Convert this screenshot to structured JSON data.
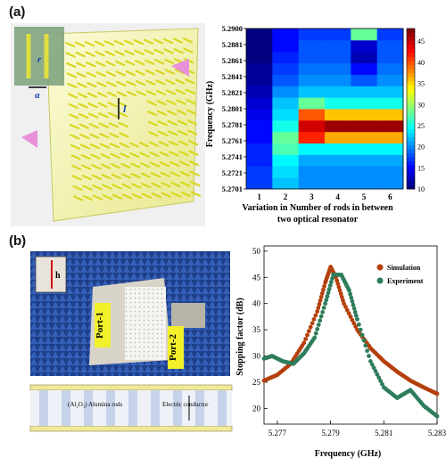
{
  "panel_a": {
    "label": "(a)",
    "schematic": {
      "symbols": [
        "r",
        "a",
        "l"
      ]
    },
    "heatmap": {
      "ylabel": "Frequency (GHz)",
      "xlabel_line1": "Variation in Number of rods in between",
      "xlabel_line2": "two optical resonator",
      "colorbar_ticks": [
        10,
        15,
        20,
        25,
        30,
        35,
        40,
        45
      ]
    }
  },
  "panel_b": {
    "label": "(b)",
    "photo": {
      "port1": "Port-1",
      "port2": "Port-2",
      "inset": "h"
    },
    "cross_section": {
      "rods_label": "(Al₂O₃) Alumina rods",
      "conductor_label": "Electric conductor"
    },
    "line_chart": {
      "xlabel": "Frequency (GHz)",
      "ylabel": "Stopping factor (dB)",
      "legend": [
        "Simulation",
        "Experiment"
      ]
    }
  },
  "chart_data": [
    {
      "type": "heatmap",
      "xlabel": "Variation in Number of rods in between two optical resonator",
      "ylabel": "Frequency (GHz)",
      "x": [
        1,
        2,
        3,
        4,
        5,
        6
      ],
      "y_tick_labels": [
        "5.2701",
        "5.2721",
        "5.2741",
        "5.2761",
        "5.2781",
        "5.2801",
        "5.2821",
        "5.2841",
        "5.2861",
        "5.2881",
        "5.2900"
      ],
      "ylim": [
        5.2701,
        5.29
      ],
      "colorbar": {
        "min": 10,
        "max": 48,
        "ticks": [
          10,
          15,
          20,
          25,
          30,
          35,
          40,
          45
        ]
      },
      "rows_bottom_to_top": [
        [
          17,
          22,
          20,
          20,
          20,
          20
        ],
        [
          17,
          23,
          20,
          20,
          20,
          20
        ],
        [
          16,
          24,
          21,
          21,
          21,
          21
        ],
        [
          16,
          27,
          24,
          24,
          24,
          24
        ],
        [
          15,
          28,
          42,
          37,
          37,
          37
        ],
        [
          15,
          25,
          45,
          47,
          47,
          47
        ],
        [
          14,
          23,
          40,
          36,
          36,
          36
        ],
        [
          13,
          22,
          28,
          25,
          25,
          25
        ],
        [
          12,
          20,
          22,
          22,
          22,
          22
        ],
        [
          11,
          18,
          20,
          20,
          18,
          20
        ],
        [
          11,
          17,
          19,
          19,
          15,
          19
        ],
        [
          10,
          16,
          18,
          18,
          12,
          18
        ],
        [
          10,
          15,
          18,
          18,
          13,
          18
        ],
        [
          10,
          15,
          17,
          17,
          28,
          17
        ]
      ]
    },
    {
      "type": "line",
      "xlabel": "Frequency (GHz)",
      "ylabel": "Stopping factor (dB)",
      "xlim": [
        5.2765,
        5.283
      ],
      "ylim": [
        17,
        51
      ],
      "x_ticks": [
        5.277,
        5.279,
        5.281,
        5.283
      ],
      "y_ticks": [
        20,
        25,
        30,
        35,
        40,
        45,
        50
      ],
      "legend_placement": "top-right",
      "series": [
        {
          "name": "Simulation",
          "color": "#b5400c",
          "x": [
            5.2765,
            5.277,
            5.2775,
            5.278,
            5.2785,
            5.2788,
            5.279,
            5.2792,
            5.2795,
            5.28,
            5.2805,
            5.281,
            5.2815,
            5.282,
            5.2825,
            5.283
          ],
          "y": [
            25.3,
            26.4,
            28.5,
            32.5,
            38.5,
            44.0,
            47.0,
            45.0,
            40.0,
            35.0,
            31.5,
            29.0,
            27.0,
            25.3,
            24.0,
            22.8
          ]
        },
        {
          "name": "Experiment",
          "color": "#2e7d5b",
          "x": [
            5.2765,
            5.2768,
            5.2772,
            5.2776,
            5.278,
            5.2784,
            5.2788,
            5.2791,
            5.2794,
            5.2797,
            5.28,
            5.2805,
            5.281,
            5.2815,
            5.282,
            5.2825,
            5.283
          ],
          "y": [
            29.5,
            30.0,
            29.0,
            28.5,
            30.5,
            33.5,
            40.0,
            45.5,
            45.5,
            42.5,
            37.0,
            29.0,
            24.0,
            22.0,
            23.5,
            20.5,
            18.5
          ]
        }
      ]
    }
  ]
}
